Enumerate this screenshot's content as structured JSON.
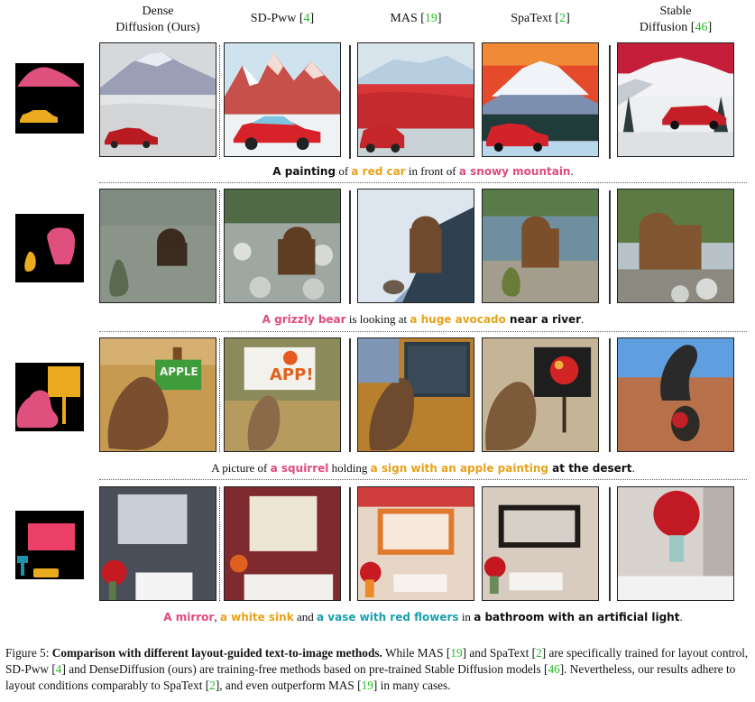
{
  "columns": [
    {
      "label_line1": "Dense",
      "label_line2": "Diffusion (Ours)",
      "ref": ""
    },
    {
      "label_line1": "SD-Pww [",
      "label_line2": "",
      "ref": "4"
    },
    {
      "label_line1": "MAS [",
      "label_line2": "",
      "ref": "19"
    },
    {
      "label_line1": "SpaText [",
      "label_line2": "",
      "ref": "2"
    },
    {
      "label_line1": "Stable",
      "label_line2": "Diffusion [",
      "ref": "46"
    }
  ],
  "rows": [
    {
      "prompt": [
        {
          "text": "A painting",
          "style": "bold"
        },
        {
          "text": " of ",
          "style": "plain"
        },
        {
          "text": "a red car",
          "style": "yel"
        },
        {
          "text": " in front of ",
          "style": "plain"
        },
        {
          "text": "a snowy mountain",
          "style": "pink"
        },
        {
          "text": ".",
          "style": "plain"
        }
      ]
    },
    {
      "prompt": [
        {
          "text": "A grizzly bear",
          "style": "pink"
        },
        {
          "text": " is looking at ",
          "style": "plain"
        },
        {
          "text": "a huge avocado",
          "style": "yel"
        },
        {
          "text": " near a river",
          "style": "bold"
        },
        {
          "text": ".",
          "style": "plain"
        }
      ]
    },
    {
      "prompt": [
        {
          "text": "A picture of ",
          "style": "plain"
        },
        {
          "text": "a squirrel",
          "style": "pink"
        },
        {
          "text": " holding ",
          "style": "plain"
        },
        {
          "text": "a sign with an apple painting",
          "style": "yel"
        },
        {
          "text": " at the desert",
          "style": "bold"
        },
        {
          "text": ".",
          "style": "plain"
        }
      ]
    },
    {
      "prompt": [
        {
          "text": "A mirror",
          "style": "pink"
        },
        {
          "text": ", ",
          "style": "plain"
        },
        {
          "text": "a white sink",
          "style": "yel"
        },
        {
          "text": " and ",
          "style": "plain"
        },
        {
          "text": "a vase with red flowers",
          "style": "cyan"
        },
        {
          "text": " in ",
          "style": "plain"
        },
        {
          "text": "a bathroom with an artificial light",
          "style": "bold"
        },
        {
          "text": ".",
          "style": "plain"
        }
      ]
    }
  ],
  "caption": {
    "label": "Figure 5: ",
    "bold": "Comparison with different layout-guided text-to-image methods.",
    "seg1": " While MAS [",
    "ref1": "19",
    "seg2": "] and SpaText [",
    "ref2": "2",
    "seg3": "] are specifically trained for layout control, SD-Pww [",
    "ref3": "4",
    "seg4": "] and DenseDiffusion (ours) are training-free methods based on pre-trained Stable Diffusion models [",
    "ref4": "46",
    "seg5": "]. Nevertheless, our results adhere to layout conditions comparably to SpaText [",
    "ref5": "2",
    "seg6": "], and even outperform MAS [",
    "ref6": "19",
    "seg7": "] in many cases."
  },
  "colors": {
    "pink": "#e04a7e",
    "yellow": "#e8a21a",
    "cyan": "#1aa0b0",
    "ref_green": "#1fbf1f"
  }
}
